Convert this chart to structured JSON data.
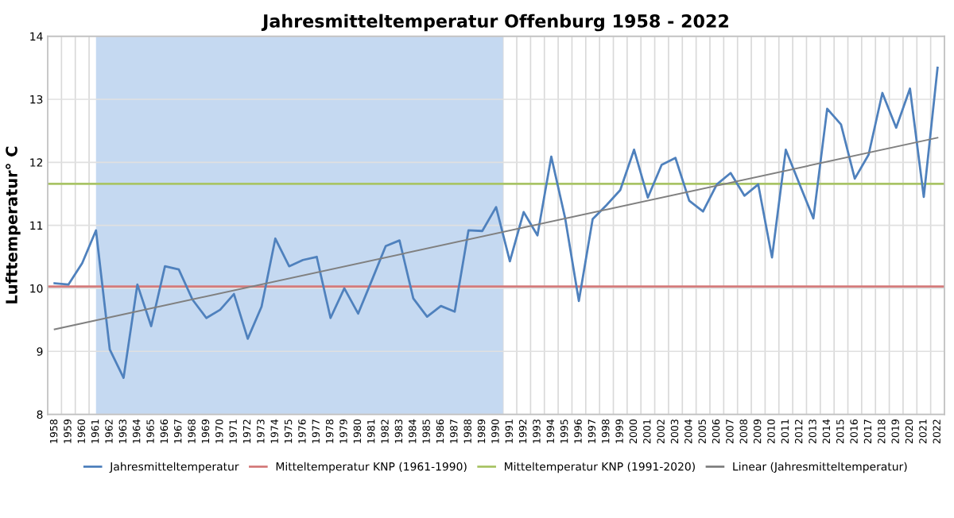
{
  "chart_data": {
    "type": "line",
    "title": "Jahresmitteltemperatur Offenburg 1958 - 2022",
    "ylabel": "Lufttemperatur° C",
    "categories": [
      "1958",
      "1959",
      "1960",
      "1961",
      "1962",
      "1963",
      "1964",
      "1965",
      "1966",
      "1967",
      "1968",
      "1969",
      "1970",
      "1971",
      "1972",
      "1973",
      "1974",
      "1975",
      "1976",
      "1977",
      "1978",
      "1979",
      "1980",
      "1981",
      "1982",
      "1983",
      "1984",
      "1985",
      "1986",
      "1987",
      "1988",
      "1989",
      "1990",
      "1991",
      "1992",
      "1993",
      "1994",
      "1995",
      "1996",
      "1997",
      "1998",
      "1999",
      "2000",
      "2001",
      "2002",
      "2003",
      "2004",
      "2005",
      "2006",
      "2007",
      "2008",
      "2009",
      "2010",
      "2011",
      "2012",
      "2013",
      "2014",
      "2015",
      "2016",
      "2017",
      "2018",
      "2019",
      "2020",
      "2021",
      "2022"
    ],
    "series": [
      {
        "name": "Jahresmitteltemperatur",
        "color": "#4f81bd",
        "values": [
          10.08,
          10.06,
          10.4,
          10.92,
          9.03,
          8.58,
          10.06,
          9.4,
          10.35,
          10.3,
          9.82,
          9.53,
          9.66,
          9.91,
          9.2,
          9.71,
          10.79,
          10.35,
          10.45,
          10.5,
          9.53,
          10.0,
          9.6,
          10.13,
          10.67,
          10.76,
          9.84,
          9.55,
          9.72,
          9.63,
          10.92,
          10.91,
          11.29,
          10.43,
          11.21,
          10.84,
          12.09,
          11.12,
          9.8,
          11.1,
          11.32,
          11.56,
          12.2,
          11.44,
          11.96,
          12.07,
          11.39,
          11.22,
          11.65,
          11.83,
          11.47,
          11.65,
          10.49,
          12.2,
          11.65,
          11.11,
          12.85,
          12.6,
          11.74,
          12.12,
          13.1,
          12.55,
          13.17,
          11.45,
          13.5
        ]
      },
      {
        "name": "Linear (Jahresmitteltemperatur)",
        "color": "#808080",
        "values": [
          9.35,
          null,
          null,
          null,
          null,
          null,
          null,
          null,
          null,
          null,
          null,
          null,
          null,
          null,
          null,
          null,
          null,
          null,
          null,
          null,
          null,
          null,
          null,
          null,
          null,
          null,
          null,
          null,
          null,
          null,
          null,
          null,
          null,
          null,
          null,
          null,
          null,
          null,
          null,
          null,
          null,
          null,
          null,
          null,
          null,
          null,
          null,
          null,
          null,
          null,
          null,
          null,
          null,
          null,
          null,
          null,
          null,
          null,
          null,
          null,
          null,
          null,
          null,
          null,
          12.39
        ]
      }
    ],
    "ref_lines": [
      {
        "axis": "y",
        "value": 10.03,
        "label": "Mitteltemperatur KNP (1961-1990)",
        "color": "#d47b7b"
      },
      {
        "axis": "y",
        "value": 11.66,
        "label": "Mitteltemperatur KNP (1991-2020)",
        "color": "#a9c466"
      }
    ],
    "bands": [
      {
        "axis": "x",
        "from": "1961",
        "to": "1990",
        "color": "#c5d9f1"
      }
    ],
    "ylim": [
      8,
      14
    ],
    "yticks": [
      8,
      9,
      10,
      11,
      12,
      13,
      14
    ],
    "grid": true,
    "legend": "bottom",
    "line_style": "solid"
  }
}
